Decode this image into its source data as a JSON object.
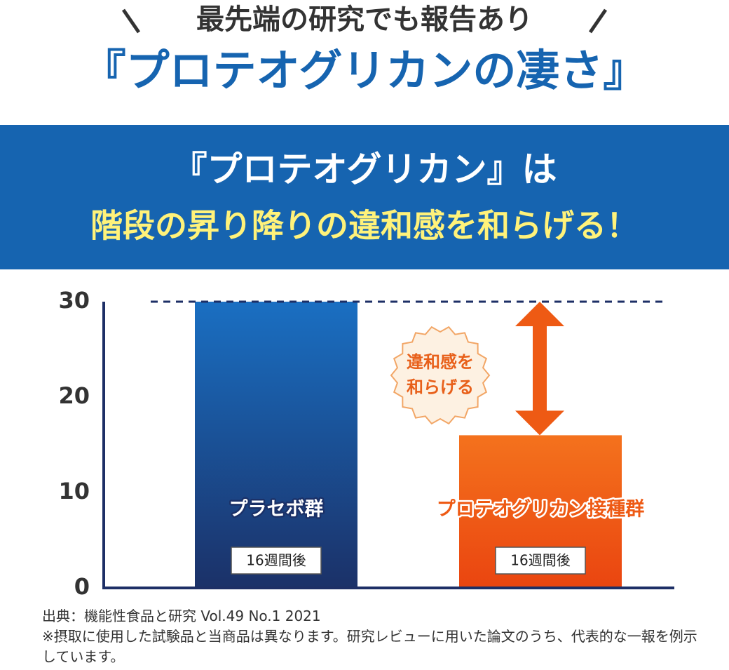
{
  "header": {
    "kicker": "最先端の研究でも報告あり",
    "title": "『プロテオグリカンの凄さ』"
  },
  "banner": {
    "line1": "『プロテオグリカン』は",
    "line2": "階段の昇り降りの違和感を和らげる！"
  },
  "chart_data": {
    "type": "bar",
    "categories": [
      "プラセボ群",
      "プロテオグリカン接種群"
    ],
    "values": [
      30,
      16
    ],
    "sublabels": [
      "16週間後",
      "16週間後"
    ],
    "colors": [
      [
        "#1a6fc2",
        "#1b3168"
      ],
      [
        "#f4721d",
        "#ea4510"
      ]
    ],
    "ylim": [
      0,
      30
    ],
    "yticks": [
      0,
      10,
      20,
      30
    ],
    "annotation": [
      "違和感を",
      "和らげる"
    ]
  },
  "footnotes": [
    "出典：機能性食品と研究 Vol.49 No.1 2021",
    "※摂取に使用した試験品と当商品は異なります。研究レビューに用いた論文のうち、代表的な一報を例示しています。"
  ]
}
